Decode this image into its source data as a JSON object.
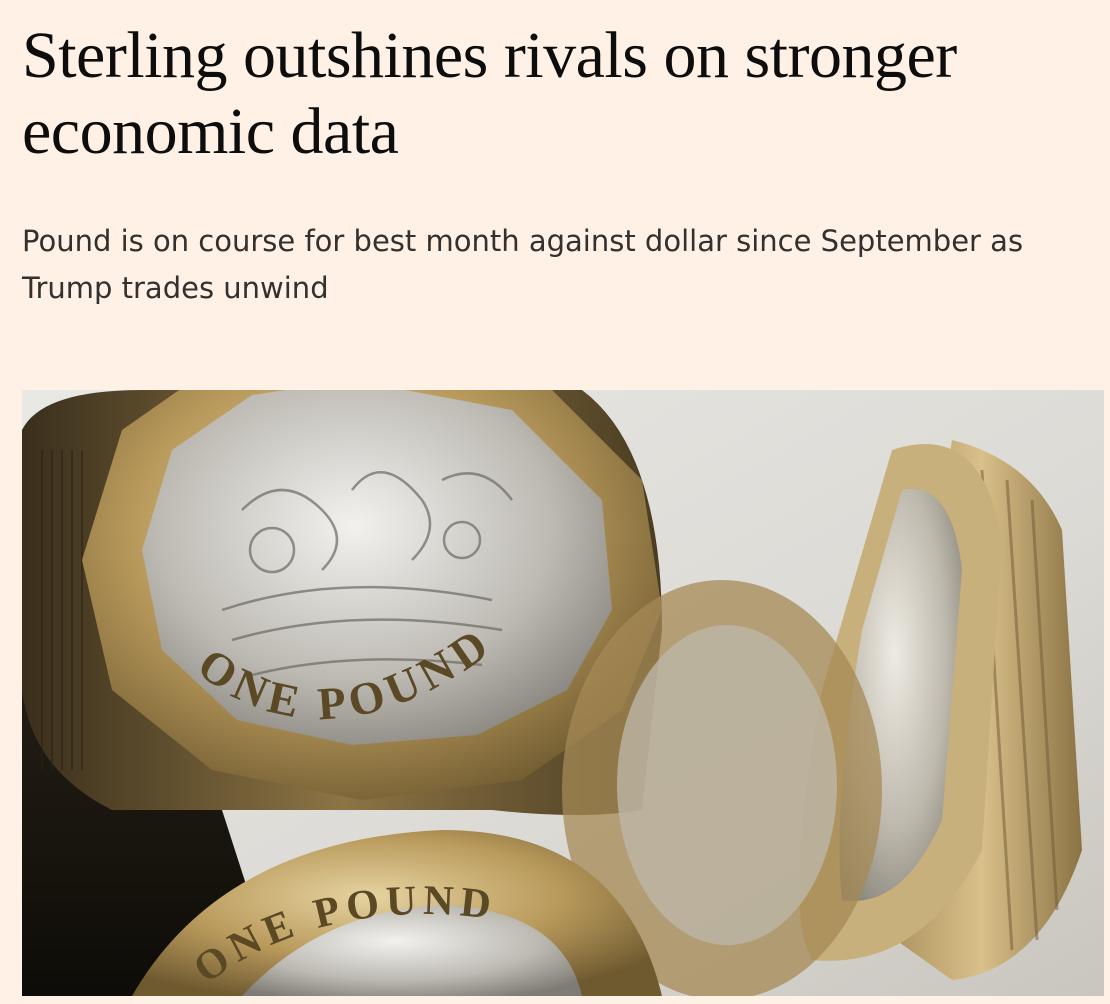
{
  "article": {
    "headline": "Sterling outshines rivals on stronger economic data",
    "standfirst": "Pound is on course for best month against dollar since September as Trump trades unwind"
  },
  "hero_image": {
    "coin_top_inscription": "ONE POUND",
    "coin_bottom_inscription": "ONE POUND",
    "colors": {
      "background": "#FFF1E5",
      "gold": "#b89a5a",
      "silver": "#c9c7c2"
    }
  }
}
